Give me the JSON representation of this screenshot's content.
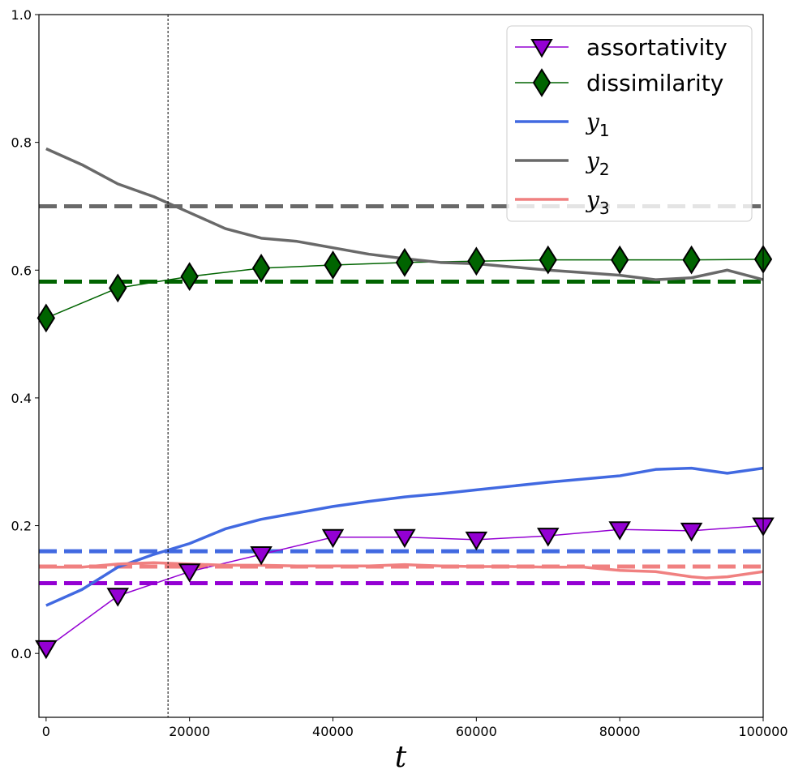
{
  "chart_data": {
    "type": "line",
    "title": "",
    "xlabel": "t",
    "ylabel": "",
    "xlim": [
      -1000,
      100000
    ],
    "ylim": [
      -0.1,
      1.0
    ],
    "grid": false,
    "legend_position": "top-right",
    "xticks": [
      0,
      20000,
      40000,
      60000,
      80000,
      100000
    ],
    "xtick_labels": [
      "0",
      "20000",
      "40000",
      "60000",
      "80000",
      "100000"
    ],
    "yticks": [
      0.0,
      0.2,
      0.4,
      0.6,
      0.8,
      1.0
    ],
    "ytick_labels": [
      "0.0",
      "0.2",
      "0.4",
      "0.6",
      "0.8",
      "1.0"
    ],
    "vline_x": 17000,
    "series": [
      {
        "name": "assortativity",
        "style": "marker-line",
        "marker": "triangle-down",
        "color": "#9400D3",
        "x": [
          0,
          10000,
          20000,
          30000,
          40000,
          50000,
          60000,
          70000,
          80000,
          90000,
          100000
        ],
        "values": [
          0.008,
          0.09,
          0.128,
          0.155,
          0.182,
          0.182,
          0.178,
          0.184,
          0.194,
          0.192,
          0.2
        ]
      },
      {
        "name": "dissimilarity",
        "style": "marker-line",
        "marker": "diamond",
        "color": "#006400",
        "x": [
          0,
          10000,
          20000,
          30000,
          40000,
          50000,
          60000,
          70000,
          80000,
          90000,
          100000
        ],
        "values": [
          0.525,
          0.572,
          0.59,
          0.603,
          0.608,
          0.612,
          0.614,
          0.616,
          0.616,
          0.616,
          0.617
        ]
      },
      {
        "name": "y_1",
        "legend_main": "y",
        "legend_sub": "1",
        "style": "line",
        "color": "#4169E1",
        "x": [
          0,
          5000,
          10000,
          15000,
          20000,
          25000,
          30000,
          35000,
          40000,
          45000,
          50000,
          55000,
          60000,
          65000,
          70000,
          75000,
          80000,
          85000,
          90000,
          95000,
          100000
        ],
        "values": [
          0.075,
          0.1,
          0.135,
          0.155,
          0.172,
          0.195,
          0.21,
          0.22,
          0.23,
          0.238,
          0.245,
          0.25,
          0.256,
          0.262,
          0.268,
          0.273,
          0.278,
          0.288,
          0.29,
          0.282,
          0.29
        ]
      },
      {
        "name": "y_2",
        "legend_main": "y",
        "legend_sub": "2",
        "style": "line",
        "color": "#696969",
        "x": [
          0,
          5000,
          10000,
          15000,
          20000,
          25000,
          30000,
          35000,
          40000,
          45000,
          50000,
          55000,
          60000,
          65000,
          70000,
          75000,
          80000,
          85000,
          90000,
          95000,
          100000
        ],
        "values": [
          0.79,
          0.765,
          0.735,
          0.715,
          0.69,
          0.665,
          0.65,
          0.645,
          0.635,
          0.625,
          0.618,
          0.612,
          0.61,
          0.605,
          0.6,
          0.596,
          0.592,
          0.585,
          0.588,
          0.6,
          0.585
        ]
      },
      {
        "name": "y_3",
        "legend_main": "y",
        "legend_sub": "3",
        "style": "line",
        "color": "#F08080",
        "x": [
          0,
          5000,
          10000,
          15000,
          20000,
          25000,
          30000,
          35000,
          40000,
          45000,
          50000,
          55000,
          60000,
          65000,
          70000,
          75000,
          80000,
          85000,
          90000,
          92000,
          95000,
          100000
        ],
        "values": [
          0.135,
          0.135,
          0.14,
          0.142,
          0.14,
          0.138,
          0.138,
          0.137,
          0.137,
          0.137,
          0.139,
          0.137,
          0.136,
          0.136,
          0.135,
          0.135,
          0.13,
          0.128,
          0.12,
          0.118,
          0.12,
          0.128
        ]
      }
    ],
    "reference_lines": [
      {
        "y": 0.7,
        "color": "#696969"
      },
      {
        "y": 0.582,
        "color": "#006400"
      },
      {
        "y": 0.16,
        "color": "#4169E1"
      },
      {
        "y": 0.136,
        "color": "#F08080"
      },
      {
        "y": 0.11,
        "color": "#9400D3"
      }
    ]
  }
}
